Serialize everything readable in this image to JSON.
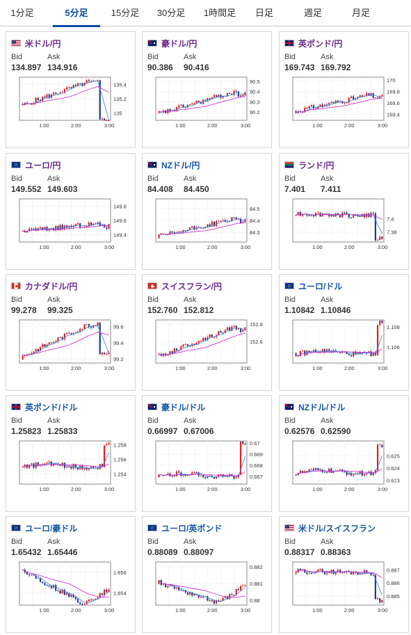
{
  "tabs": [
    {
      "label": "1分足",
      "active": false
    },
    {
      "label": "5分足",
      "active": true
    },
    {
      "label": "15分足",
      "active": false
    },
    {
      "label": "30分足",
      "active": false
    },
    {
      "label": "1時間足",
      "active": false
    },
    {
      "label": "日足",
      "active": false
    },
    {
      "label": "週足",
      "active": false
    },
    {
      "label": "月足",
      "active": false
    }
  ],
  "colors": {
    "up": "#e02020",
    "down": "#1e3c8c",
    "ma_short": "#3c8ee0",
    "ma_long": "#d233d2",
    "grid": "#e0e0e0",
    "active_tab": "#0b4aa6",
    "title_purple": "#6a2a8c",
    "title_blue": "#1558a8"
  },
  "labels": {
    "bid": "Bid",
    "ask": "Ask"
  },
  "x_ticks": [
    "1:00",
    "2:00",
    "3:00"
  ],
  "cards": [
    {
      "pair": "米ドル/円",
      "title_color": "purple",
      "flag": "us-flag-icon",
      "bid": "134.897",
      "ask": "134.916",
      "chart_data": {
        "type": "candlestick",
        "ylim": [
          134.9,
          135.5
        ],
        "y_ticks": [
          "135.4",
          "135.2",
          "135"
        ],
        "y_tick_values": [
          135.4,
          135.2,
          135.0
        ],
        "start": 135.1,
        "end": 134.9,
        "shape": "up-then-drop"
      }
    },
    {
      "pair": "豪ドル/円",
      "title_color": "purple",
      "flag": "au-flag-icon",
      "bid": "90.386",
      "ask": "90.416",
      "chart_data": {
        "type": "candlestick",
        "ylim": [
          90.12,
          90.54
        ],
        "y_ticks": [
          "90.5",
          "90.4",
          "90.3",
          "90.2"
        ],
        "y_tick_values": [
          90.5,
          90.4,
          90.3,
          90.2
        ],
        "start": 90.18,
        "end": 90.39,
        "shape": "rise"
      }
    },
    {
      "pair": "英ポンド/円",
      "title_color": "purple",
      "flag": "uk-flag-icon",
      "bid": "169.743",
      "ask": "169.792",
      "chart_data": {
        "type": "candlestick",
        "ylim": [
          169.3,
          170.05
        ],
        "y_ticks": [
          "170",
          "169.8",
          "169.6",
          "169.4"
        ],
        "y_tick_values": [
          170.0,
          169.8,
          169.6,
          169.4
        ],
        "start": 169.45,
        "end": 169.74,
        "shape": "rise"
      }
    },
    {
      "pair": "ユーロ/円",
      "title_color": "purple",
      "flag": "eu-flag-icon",
      "bid": "149.552",
      "ask": "149.603",
      "chart_data": {
        "type": "candlestick",
        "ylim": [
          149.3,
          149.9
        ],
        "y_ticks": [
          "149.8",
          "149.6",
          "149.4"
        ],
        "y_tick_values": [
          149.8,
          149.6,
          149.4
        ],
        "start": 149.45,
        "end": 149.55,
        "shape": "rise"
      }
    },
    {
      "pair": "NZドル/円",
      "title_color": "blue",
      "flag": "nz-flag-icon",
      "bid": "84.408",
      "ask": "84.450",
      "chart_data": {
        "type": "candlestick",
        "ylim": [
          84.22,
          84.58
        ],
        "y_ticks": [
          "84.5",
          "84.4",
          "84.3"
        ],
        "y_tick_values": [
          84.5,
          84.4,
          84.3
        ],
        "start": 84.26,
        "end": 84.41,
        "shape": "rise"
      }
    },
    {
      "pair": "ランド/円",
      "title_color": "purple",
      "flag": "za-flag-icon",
      "bid": "7.401",
      "ask": "7.411",
      "chart_data": {
        "type": "candlestick",
        "ylim": [
          7.365,
          7.43
        ],
        "y_ticks": [
          "7.4",
          "7.38"
        ],
        "y_tick_values": [
          7.4,
          7.38
        ],
        "start": 7.408,
        "end": 7.37,
        "shape": "flat-then-drop"
      }
    },
    {
      "pair": "カナダドル/円",
      "title_color": "purple",
      "flag": "ca-flag-icon",
      "bid": "99.278",
      "ask": "99.325",
      "chart_data": {
        "type": "candlestick",
        "ylim": [
          99.15,
          99.68
        ],
        "y_ticks": [
          "99.6",
          "99.4",
          "99.2"
        ],
        "y_tick_values": [
          99.6,
          99.4,
          99.2
        ],
        "start": 99.22,
        "end": 99.28,
        "shape": "up-then-drop"
      }
    },
    {
      "pair": "スイスフラン/円",
      "title_color": "purple",
      "flag": "ch-flag-icon",
      "bid": "152.760",
      "ask": "152.812",
      "chart_data": {
        "type": "candlestick",
        "ylim": [
          152.35,
          152.85
        ],
        "y_ticks": [
          "152.8",
          "152.6"
        ],
        "y_tick_values": [
          152.8,
          152.6
        ],
        "start": 152.42,
        "end": 152.76,
        "shape": "rise"
      }
    },
    {
      "pair": "ユーロ/ドル",
      "title_color": "blue",
      "flag": "eu-us-flag-icon",
      "bid": "1.10842",
      "ask": "1.10846",
      "chart_data": {
        "type": "candlestick",
        "ylim": [
          1.1044,
          1.1087
        ],
        "y_ticks": [
          "1.108",
          "1.106"
        ],
        "y_tick_values": [
          1.108,
          1.106
        ],
        "start": 1.1052,
        "end": 1.1084,
        "shape": "flat-then-spike"
      }
    },
    {
      "pair": "英ポンド/ドル",
      "title_color": "blue",
      "flag": "uk-us-flag-icon",
      "bid": "1.25823",
      "ask": "1.25833",
      "chart_data": {
        "type": "candlestick",
        "ylim": [
          1.2526,
          1.2585
        ],
        "y_ticks": [
          "1.258",
          "1.256",
          "1.254"
        ],
        "y_tick_values": [
          1.258,
          1.256,
          1.254
        ],
        "start": 1.2548,
        "end": 1.2582,
        "shape": "flat-then-spike"
      }
    },
    {
      "pair": "豪ドル/ドル",
      "title_color": "blue",
      "flag": "au-us-flag-icon",
      "bid": "0.66997",
      "ask": "0.67006",
      "chart_data": {
        "type": "candlestick",
        "ylim": [
          0.6663,
          0.6702
        ],
        "y_ticks": [
          "0.67",
          "0.669",
          "0.668",
          "0.667"
        ],
        "y_tick_values": [
          0.67,
          0.669,
          0.668,
          0.667
        ],
        "start": 0.6669,
        "end": 0.6699,
        "shape": "flat-then-spike"
      }
    },
    {
      "pair": "NZドル/ドル",
      "title_color": "blue",
      "flag": "nz-us-flag-icon",
      "bid": "0.62576",
      "ask": "0.62590",
      "chart_data": {
        "type": "candlestick",
        "ylim": [
          0.6227,
          0.6262
        ],
        "y_ticks": [
          "0.625",
          "0.624",
          "0.623"
        ],
        "y_tick_values": [
          0.625,
          0.624,
          0.623
        ],
        "start": 0.6235,
        "end": 0.6257,
        "shape": "flat-then-spike"
      }
    },
    {
      "pair": "ユーロ/豪ドル",
      "title_color": "blue",
      "flag": "eu-au-flag-icon",
      "bid": "1.65432",
      "ask": "1.65446",
      "chart_data": {
        "type": "candlestick",
        "ylim": [
          1.6528,
          1.657
        ],
        "y_ticks": [
          "1.656",
          "1.654"
        ],
        "y_tick_values": [
          1.656,
          1.654
        ],
        "start": 1.6563,
        "end": 1.6543,
        "shape": "fall-then-rise"
      }
    },
    {
      "pair": "ユーロ/英ポンド",
      "title_color": "blue",
      "flag": "eu-uk-flag-icon",
      "bid": "0.88089",
      "ask": "0.88097",
      "chart_data": {
        "type": "candlestick",
        "ylim": [
          0.8797,
          0.8823
        ],
        "y_ticks": [
          "0.882",
          "0.881",
          "0.88"
        ],
        "y_tick_values": [
          0.882,
          0.881,
          0.88
        ],
        "start": 0.8811,
        "end": 0.8809,
        "shape": "fall-then-rise"
      }
    },
    {
      "pair": "米ドル/スイスフラン",
      "title_color": "blue",
      "flag": "us-ch-flag-icon",
      "bid": "0.88317",
      "ask": "0.88363",
      "chart_data": {
        "type": "candlestick",
        "ylim": [
          0.8843,
          0.8876
        ],
        "y_ticks": [
          "0.887",
          "0.886",
          "0.885"
        ],
        "y_tick_values": [
          0.887,
          0.886,
          0.885
        ],
        "start": 0.8869,
        "end": 0.8847,
        "shape": "flat-then-drop"
      }
    }
  ]
}
